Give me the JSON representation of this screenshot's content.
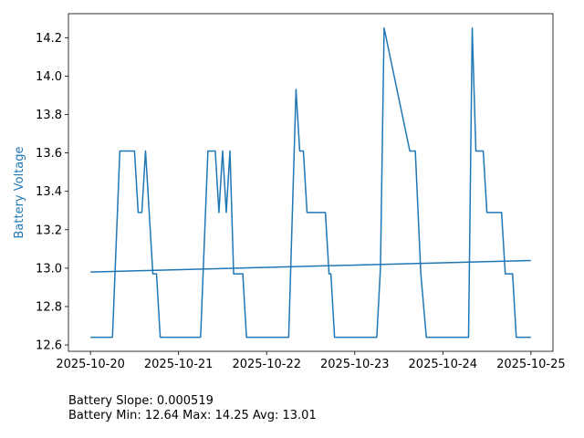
{
  "chart_data": {
    "type": "line",
    "ylabel": "Battery Voltage",
    "xlabel": "",
    "xlim": [
      "2025-10-20",
      "2025-10-25"
    ],
    "ylim": [
      12.567,
      14.325
    ],
    "x_ticks": [
      "2025-10-20",
      "2025-10-21",
      "2025-10-22",
      "2025-10-23",
      "2025-10-24",
      "2025-10-25"
    ],
    "y_ticks": [
      12.6,
      12.8,
      13.0,
      13.2,
      13.4,
      13.6,
      13.8,
      14.0,
      14.2
    ],
    "y_tick_labels": [
      "12.6",
      "12.8",
      "13.0",
      "13.2",
      "13.4",
      "13.6",
      "13.8",
      "14.0",
      "14.2"
    ],
    "grid": false,
    "colors": {
      "series": "#1f77b4",
      "ylabel": "#1f77b4"
    },
    "series": [
      {
        "x": [
          "2025-10-20 00:00",
          "2025-10-20 06:00",
          "2025-10-20 08:00",
          "2025-10-20 12:00",
          "2025-10-20 13:00",
          "2025-10-20 14:00",
          "2025-10-20 15:00",
          "2025-10-20 17:00",
          "2025-10-20 17:30",
          "2025-10-20 18:00",
          "2025-10-20 19:00",
          "2025-10-21 06:00",
          "2025-10-21 08:00",
          "2025-10-21 10:00",
          "2025-10-21 11:00",
          "2025-10-21 12:00",
          "2025-10-21 13:00",
          "2025-10-21 14:00",
          "2025-10-21 15:00",
          "2025-10-21 17:00",
          "2025-10-21 17:30",
          "2025-10-21 18:30",
          "2025-10-22 06:00",
          "2025-10-22 08:00",
          "2025-10-22 09:00",
          "2025-10-22 10:00",
          "2025-10-22 11:00",
          "2025-10-22 16:00",
          "2025-10-22 17:00",
          "2025-10-22 17:30",
          "2025-10-22 18:30",
          "2025-10-23 06:00",
          "2025-10-23 07:00",
          "2025-10-23 08:00",
          "2025-10-23 15:00",
          "2025-10-23 16:30",
          "2025-10-23 18:00",
          "2025-10-23 19:30",
          "2025-10-24 07:00",
          "2025-10-24 08:00",
          "2025-10-24 09:00",
          "2025-10-24 11:00",
          "2025-10-24 12:00",
          "2025-10-24 16:00",
          "2025-10-24 17:00",
          "2025-10-24 19:00",
          "2025-10-24 20:00",
          "2025-10-24 23:59"
        ],
        "values": [
          12.64,
          12.64,
          13.61,
          13.61,
          13.29,
          13.29,
          13.61,
          12.97,
          12.97,
          12.97,
          12.64,
          12.64,
          13.61,
          13.61,
          13.29,
          13.61,
          13.29,
          13.61,
          12.97,
          12.97,
          12.97,
          12.64,
          12.64,
          13.93,
          13.61,
          13.61,
          13.29,
          13.29,
          12.97,
          12.97,
          12.64,
          12.64,
          13.0,
          14.25,
          13.61,
          13.61,
          12.97,
          12.64,
          12.64,
          14.25,
          13.61,
          13.61,
          13.29,
          13.29,
          12.97,
          12.97,
          12.64,
          12.64
        ]
      },
      {
        "x": [
          "2025-10-20 00:00",
          "2025-10-24 23:59"
        ],
        "values": [
          12.98,
          13.04
        ]
      }
    ]
  },
  "footer": {
    "slope_line": "Battery Slope: 0.000519",
    "stats_line": "Battery Min: 12.64 Max: 14.25 Avg: 13.01"
  }
}
